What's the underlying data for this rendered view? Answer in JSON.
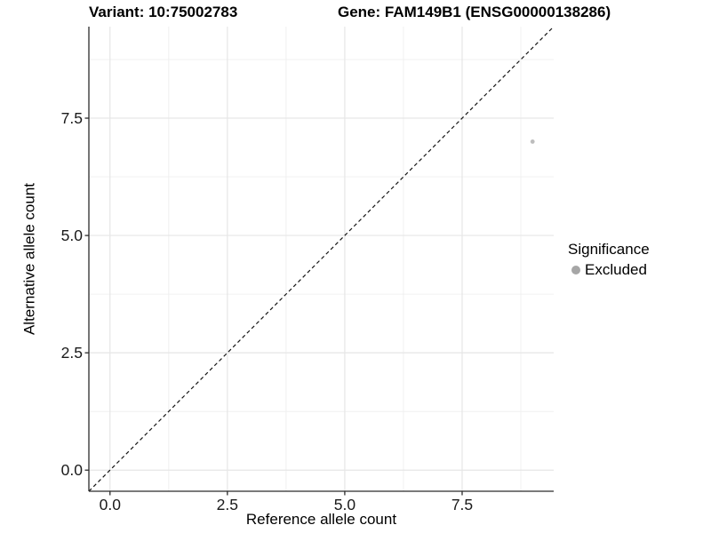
{
  "chart_data": {
    "type": "scatter",
    "titles": {
      "variant": "Variant: 10:75002783",
      "gene": "Gene: FAM149B1 (ENSG00000138286)"
    },
    "xlabel": "Reference allele count",
    "ylabel": "Alternative allele count",
    "xlim": [
      -0.45,
      9.45
    ],
    "ylim": [
      -0.45,
      9.45
    ],
    "x_ticks": [
      0,
      2.5,
      5,
      7.5
    ],
    "x_tick_labels": [
      "0.0",
      "2.5",
      "5.0",
      "7.5"
    ],
    "y_ticks": [
      0,
      2.5,
      5,
      7.5
    ],
    "y_tick_labels": [
      "0.0",
      "2.5",
      "5.0",
      "7.5"
    ],
    "x_minor_ticks": [
      1.25,
      3.75,
      6.25,
      8.75
    ],
    "y_minor_ticks": [
      1.25,
      3.75,
      6.25,
      8.75
    ],
    "grid": "major and minor gridlines, white panel background",
    "points": [
      {
        "x": 9,
        "y": 7,
        "significance": "Excluded"
      }
    ],
    "reference_line": {
      "type": "identity y=x",
      "style": "dashed",
      "color": "#141414"
    },
    "legend": {
      "title": "Significance",
      "position": "right",
      "entries": [
        {
          "label": "Excluded",
          "color": "#bdbdbd"
        }
      ]
    },
    "colors": {
      "point": "#bdbdbd",
      "legend_dot": "#a6a6a6",
      "grid_major": "#e6e6e6",
      "grid_minor": "#f0f0f0",
      "axis": "#2b2b2b",
      "text": "#000000",
      "background": "#ffffff"
    }
  }
}
